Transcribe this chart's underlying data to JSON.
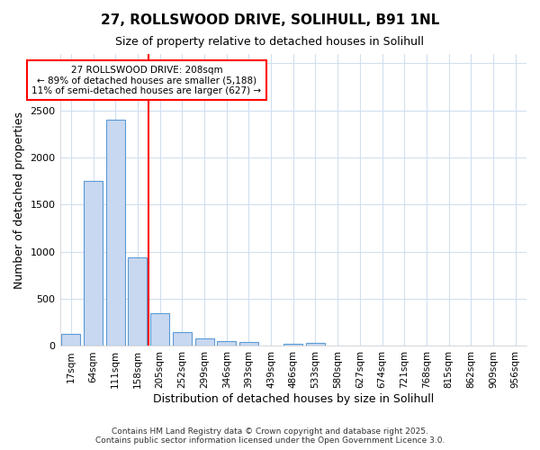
{
  "title": "27, ROLLSWOOD DRIVE, SOLIHULL, B91 1NL",
  "subtitle": "Size of property relative to detached houses in Solihull",
  "xlabel": "Distribution of detached houses by size in Solihull",
  "ylabel": "Number of detached properties",
  "categories": [
    "17sqm",
    "64sqm",
    "111sqm",
    "158sqm",
    "205sqm",
    "252sqm",
    "299sqm",
    "346sqm",
    "393sqm",
    "439sqm",
    "486sqm",
    "533sqm",
    "580sqm",
    "627sqm",
    "674sqm",
    "721sqm",
    "768sqm",
    "815sqm",
    "862sqm",
    "909sqm",
    "956sqm"
  ],
  "values": [
    125,
    1750,
    2400,
    940,
    350,
    150,
    80,
    55,
    40,
    5,
    25,
    30,
    5,
    0,
    0,
    0,
    0,
    0,
    0,
    0,
    0
  ],
  "bar_color": "#c8d8f0",
  "bar_edge_color": "#5b9bd5",
  "red_line_index": 4,
  "annotation_line1": "27 ROLLSWOOD DRIVE: 208sqm",
  "annotation_line2": "← 89% of detached houses are smaller (5,188)",
  "annotation_line3": "11% of semi-detached houses are larger (627) →",
  "ylim": [
    0,
    3100
  ],
  "background_color": "#ffffff",
  "grid_color": "#d0dff0",
  "footer1": "Contains HM Land Registry data © Crown copyright and database right 2025.",
  "footer2": "Contains public sector information licensed under the Open Government Licence 3.0."
}
